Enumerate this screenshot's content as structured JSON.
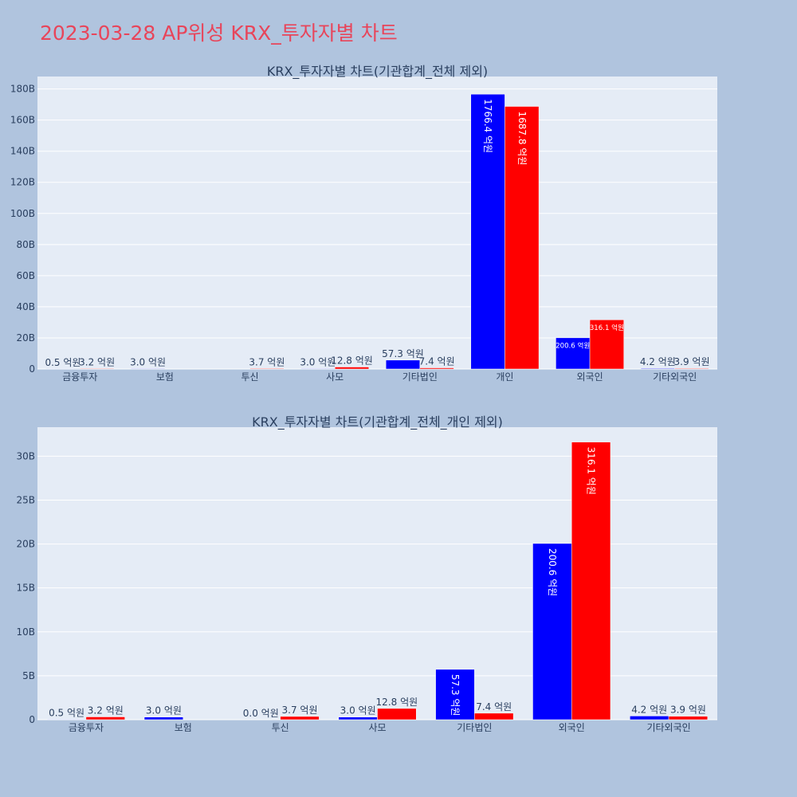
{
  "page": {
    "title": "2023-03-28 AP위성 KRX_투자자별 차트",
    "colors": {
      "background": "#b0c4de",
      "plot_bg": "#e5ecf6",
      "title": "#e8455a",
      "buy": "#0000ff",
      "sell": "#ff0000"
    }
  },
  "chart_data": [
    {
      "type": "bar",
      "title": "KRX_투자자별 차트(기관합계_전체 제외)",
      "categories": [
        "금융투자",
        "보험",
        "투신",
        "사모",
        "기타법인",
        "개인",
        "외국인",
        "기타외국인"
      ],
      "y_ticks": [
        "0",
        "20B",
        "40B",
        "60B",
        "80B",
        "100B",
        "120B",
        "140B",
        "160B",
        "180B"
      ],
      "ylim": [
        0,
        188
      ],
      "ylabel": "",
      "xlabel": "",
      "grid": true,
      "legend": "none",
      "series": [
        {
          "color": "#0000ff",
          "values": [
            0.05,
            0.3,
            0,
            0.3,
            5.73,
            176.64,
            20.06,
            0.42
          ],
          "labels": [
            "0.5 억원",
            "3.0 억원",
            "",
            "3.0 억원",
            "57.3 억원",
            "1766.4 억원",
            "200.6 억원",
            "4.2 억원"
          ]
        },
        {
          "color": "#ff0000",
          "values": [
            0.32,
            0,
            0.37,
            1.28,
            0.74,
            168.78,
            31.61,
            0.39
          ],
          "labels": [
            "3.2 억원",
            "",
            "3.7 억원",
            "12.8 억원",
            "7.4 억원",
            "1687.8 억원",
            "316.1 억원",
            "3.9 억원"
          ]
        }
      ]
    },
    {
      "type": "bar",
      "title": "KRX_투자자별 차트(기관합계_전체_개인 제외)",
      "categories": [
        "금융투자",
        "보험",
        "투신",
        "사모",
        "기타법인",
        "외국인",
        "기타외국인"
      ],
      "y_ticks": [
        "0",
        "5B",
        "10B",
        "15B",
        "20B",
        "25B",
        "30B"
      ],
      "ylim": [
        0,
        33.3
      ],
      "ylabel": "",
      "xlabel": "",
      "grid": true,
      "legend": "none",
      "series": [
        {
          "color": "#0000ff",
          "values": [
            0.05,
            0.3,
            0.0,
            0.3,
            5.73,
            20.06,
            0.42
          ],
          "labels": [
            "0.5 억원",
            "3.0 억원",
            "0.0 억원",
            "3.0 억원",
            "57.3 억원",
            "200.6 억원",
            "4.2 억원"
          ]
        },
        {
          "color": "#ff0000",
          "values": [
            0.32,
            0,
            0.37,
            1.28,
            0.74,
            31.61,
            0.39
          ],
          "labels": [
            "3.2 억원",
            "",
            "3.7 억원",
            "12.8 억원",
            "7.4 억원",
            "316.1 억원",
            "3.9 억원"
          ]
        }
      ]
    }
  ]
}
